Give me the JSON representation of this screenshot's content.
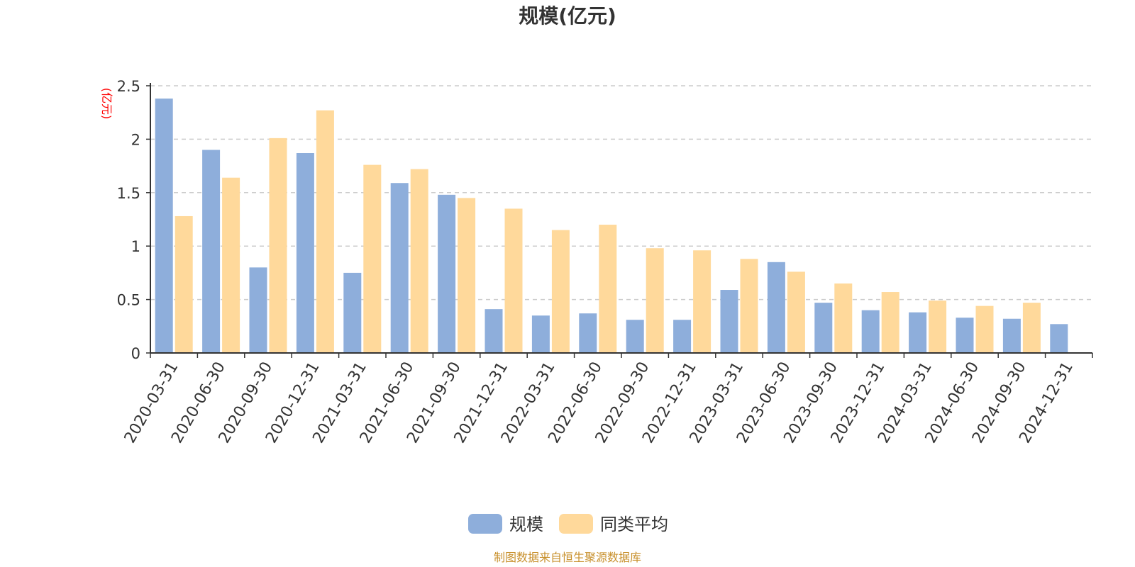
{
  "chart_data": {
    "type": "bar",
    "title": "规模(亿元)",
    "ylabel": "(亿元)",
    "ylim": [
      0,
      2.5
    ],
    "yticks": [
      "0",
      "0.5",
      "1",
      "1.5",
      "2",
      "2.5"
    ],
    "ytick_values": [
      0,
      0.5,
      1,
      1.5,
      2,
      2.5
    ],
    "grid": true,
    "legend_position": "bottom-center",
    "categories": [
      "2020-03-31",
      "2020-06-30",
      "2020-09-30",
      "2020-12-31",
      "2021-03-31",
      "2021-06-30",
      "2021-09-30",
      "2021-12-31",
      "2022-03-31",
      "2022-06-30",
      "2022-09-30",
      "2022-12-31",
      "2023-03-31",
      "2023-06-30",
      "2023-09-30",
      "2023-12-31",
      "2024-03-31",
      "2024-06-30",
      "2024-09-30",
      "2024-12-31"
    ],
    "series": [
      {
        "name": "规模",
        "color": "#8eaedb",
        "values": [
          2.38,
          1.9,
          0.8,
          1.87,
          0.75,
          1.59,
          1.48,
          0.41,
          0.35,
          0.37,
          0.31,
          0.31,
          0.59,
          0.85,
          0.47,
          0.4,
          0.38,
          0.33,
          0.32,
          0.27
        ]
      },
      {
        "name": "同类平均",
        "color": "#ffd99b",
        "values": [
          1.28,
          1.64,
          2.01,
          2.27,
          1.76,
          1.72,
          1.45,
          1.35,
          1.15,
          1.2,
          0.98,
          0.96,
          0.88,
          0.76,
          0.65,
          0.57,
          0.49,
          0.44,
          0.47,
          null
        ]
      }
    ],
    "source": "制图数据来自恒生聚源数据库"
  }
}
